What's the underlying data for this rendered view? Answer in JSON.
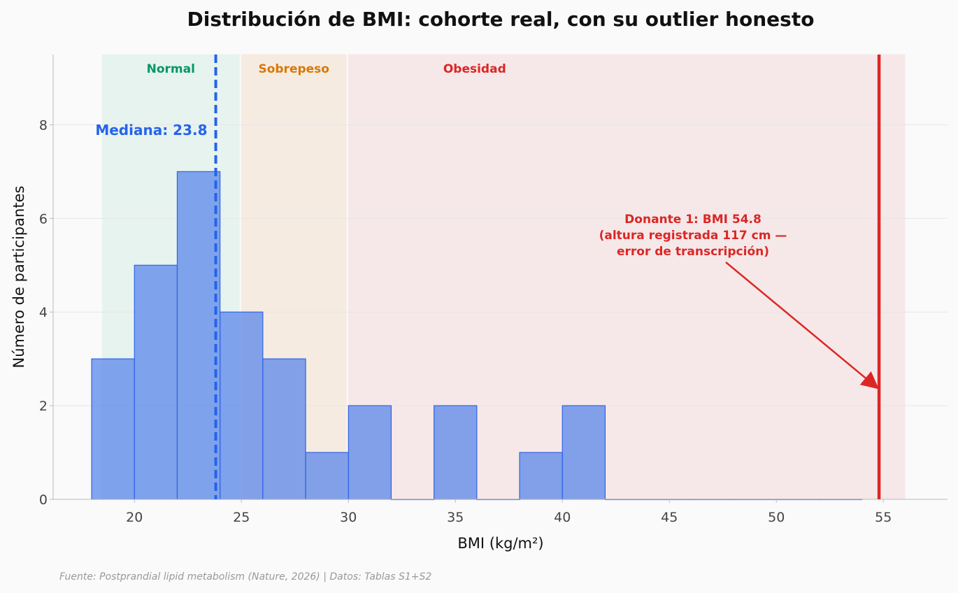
{
  "chart_data": {
    "type": "bar",
    "title": "Distribución de BMI: cohorte real, con su outlier honesto",
    "xlabel": "BMI (kg/m²)",
    "ylabel": "Número de participantes",
    "xlim": [
      16.2,
      58.0
    ],
    "ylim": [
      0,
      9.5
    ],
    "xticks": [
      20,
      25,
      30,
      35,
      40,
      45,
      50,
      55
    ],
    "yticks": [
      0,
      2,
      4,
      6,
      8
    ],
    "grid": "horizontal",
    "bins": [
      {
        "start": 18,
        "end": 20,
        "count": 3
      },
      {
        "start": 20,
        "end": 22,
        "count": 5
      },
      {
        "start": 22,
        "end": 24,
        "count": 7
      },
      {
        "start": 24,
        "end": 26,
        "count": 4
      },
      {
        "start": 26,
        "end": 28,
        "count": 3
      },
      {
        "start": 28,
        "end": 30,
        "count": 1
      },
      {
        "start": 30,
        "end": 32,
        "count": 2
      },
      {
        "start": 32,
        "end": 34,
        "count": 0
      },
      {
        "start": 34,
        "end": 36,
        "count": 2
      },
      {
        "start": 36,
        "end": 38,
        "count": 0
      },
      {
        "start": 38,
        "end": 40,
        "count": 1
      },
      {
        "start": 40,
        "end": 42,
        "count": 2
      },
      {
        "start": 42,
        "end": 44,
        "count": 0
      },
      {
        "start": 44,
        "end": 46,
        "count": 0
      },
      {
        "start": 46,
        "end": 48,
        "count": 0
      },
      {
        "start": 48,
        "end": 50,
        "count": 0
      },
      {
        "start": 50,
        "end": 52,
        "count": 0
      },
      {
        "start": 52,
        "end": 54,
        "count": 0
      }
    ],
    "bar_color": "#5b87ea",
    "zones": [
      {
        "label": "Normal",
        "start": 18.5,
        "end": 24.9,
        "color": "#059669",
        "fill": "#e6f3ee"
      },
      {
        "label": "Sobrepeso",
        "start": 25.0,
        "end": 29.9,
        "color": "#d97706",
        "fill": "#f6ebe0"
      },
      {
        "label": "Obesidad",
        "start": 30.0,
        "end": 56.0,
        "color": "#dc2626",
        "fill": "#f6e8e8"
      }
    ],
    "median": {
      "value": 23.8,
      "label": "Mediana: 23.8",
      "color": "#2563eb"
    },
    "outlier": {
      "value": 54.8,
      "color": "#dc2626",
      "annotation": [
        "Donante 1: BMI 54.8",
        "(altura registrada 117 cm —",
        "error de transcripción)"
      ],
      "arrow_y": 2.4
    }
  },
  "source_note": "Fuente: Postprandial lipid metabolism (Nature, 2026) | Datos: Tablas S1+S2"
}
